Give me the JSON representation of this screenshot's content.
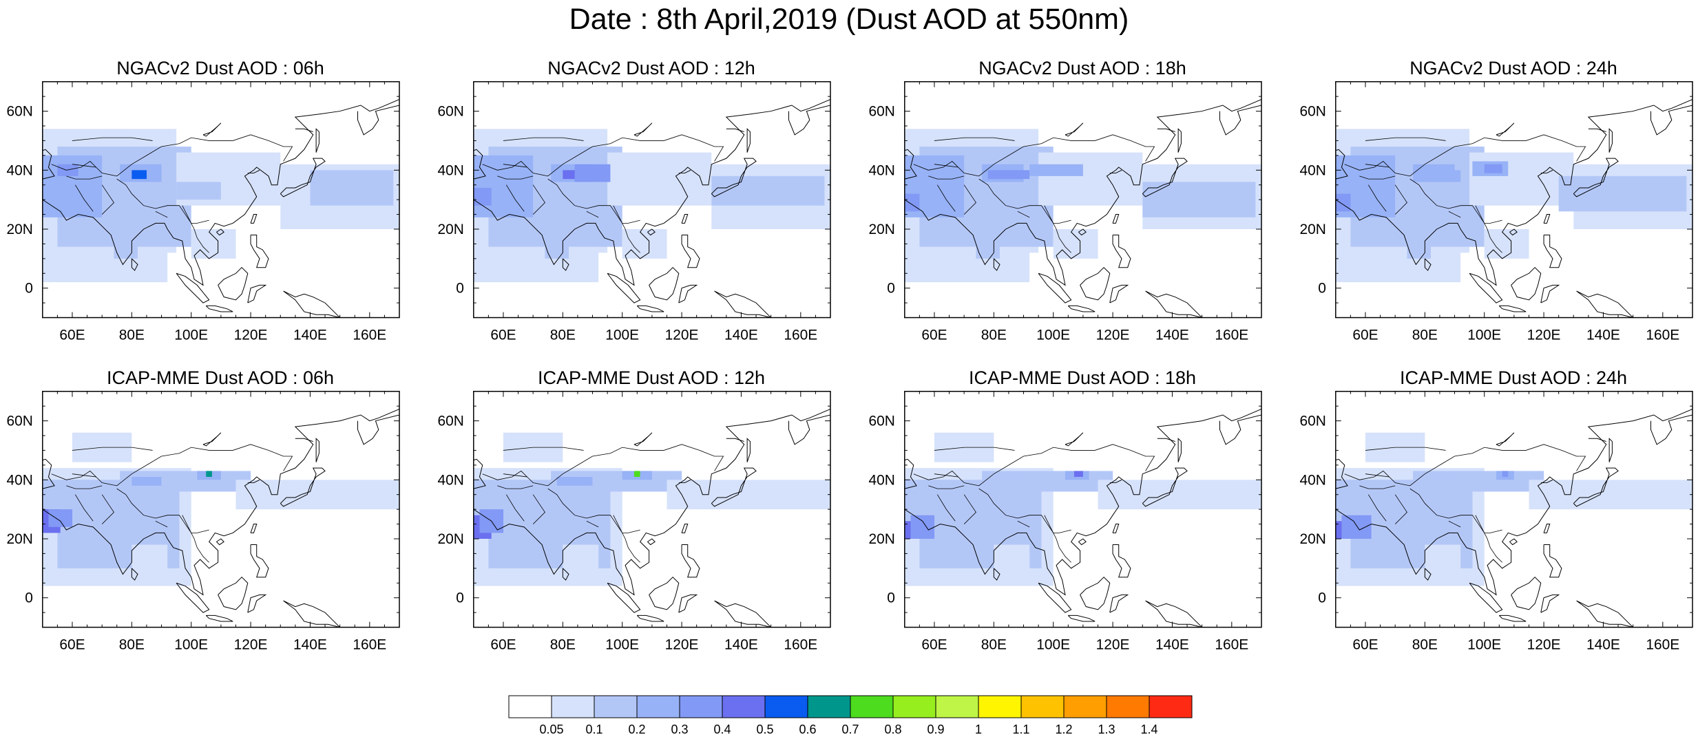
{
  "title": "Date : 8th April,2019 (Dust AOD at 550nm)",
  "lat_ticks": [
    "60N",
    "40N",
    "20N",
    "0"
  ],
  "lon_ticks": [
    "60E",
    "80E",
    "100E",
    "120E",
    "140E",
    "160E"
  ],
  "domain": {
    "lon_range": [
      50,
      170
    ],
    "lat_range": [
      -10,
      70
    ]
  },
  "panels": [
    {
      "title": "NGACv2 Dust AOD : 06h",
      "model": "NGACv2",
      "hour": "06h"
    },
    {
      "title": "NGACv2 Dust AOD : 12h",
      "model": "NGACv2",
      "hour": "12h"
    },
    {
      "title": "NGACv2 Dust AOD : 18h",
      "model": "NGACv2",
      "hour": "18h"
    },
    {
      "title": "NGACv2 Dust AOD : 24h",
      "model": "NGACv2",
      "hour": "24h"
    },
    {
      "title": "ICAP-MME Dust AOD : 06h",
      "model": "ICAP-MME",
      "hour": "06h"
    },
    {
      "title": "ICAP-MME Dust AOD : 12h",
      "model": "ICAP-MME",
      "hour": "12h"
    },
    {
      "title": "ICAP-MME Dust AOD : 18h",
      "model": "ICAP-MME",
      "hour": "18h"
    },
    {
      "title": "ICAP-MME Dust AOD : 24h",
      "model": "ICAP-MME",
      "hour": "24h"
    }
  ],
  "colorbar": {
    "labels": [
      "0.05",
      "0.1",
      "0.2",
      "0.3",
      "0.4",
      "0.5",
      "0.6",
      "0.7",
      "0.8",
      "0.9",
      "1",
      "1.1",
      "1.2",
      "1.3",
      "1.4"
    ],
    "colors": [
      "#ffffff",
      "#d6e2fb",
      "#b3c7f7",
      "#97b2f6",
      "#8299f5",
      "#6b70f0",
      "#0a5cf0",
      "#00968c",
      "#4ddc1e",
      "#96ee1e",
      "#bef546",
      "#fff500",
      "#ffc200",
      "#ff9e00",
      "#ff7a00",
      "#ff2a14"
    ]
  }
}
